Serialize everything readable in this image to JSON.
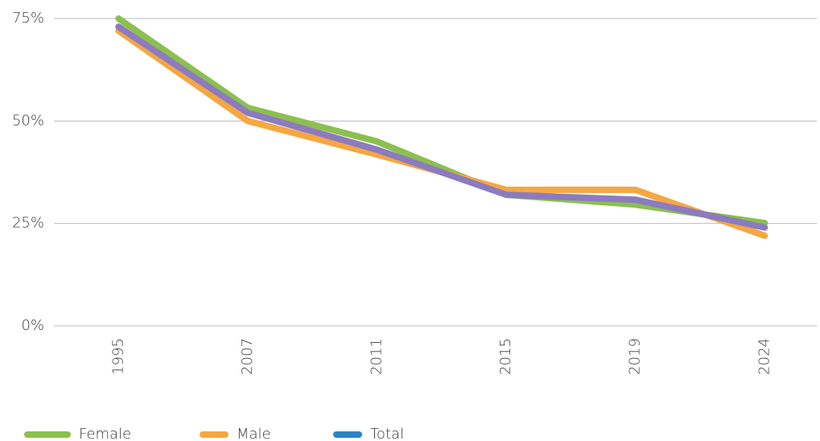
{
  "chart_data": {
    "type": "line",
    "categories": [
      "1995",
      "2007",
      "2011",
      "2015",
      "2019",
      "2024"
    ],
    "series": [
      {
        "name": "Female",
        "color": "#8bc04f",
        "values": [
          75,
          53.2,
          45,
          32,
          29.6,
          25.1
        ]
      },
      {
        "name": "Male",
        "color": "#f5a742",
        "values": [
          72,
          50,
          41.8,
          33.2,
          33.2,
          22
        ]
      },
      {
        "name": "Total",
        "color": "#2e82c6",
        "line_color": "#8c7bbf",
        "values": [
          73,
          52,
          43,
          32,
          30.8,
          24
        ]
      }
    ],
    "ylim": [
      0,
      75
    ],
    "yticks": [
      {
        "value": 0,
        "label": "0%"
      },
      {
        "value": 25,
        "label": "25%"
      },
      {
        "value": 50,
        "label": "50%"
      },
      {
        "value": 75,
        "label": "75%"
      }
    ],
    "grid": true,
    "legend": "bottom"
  }
}
